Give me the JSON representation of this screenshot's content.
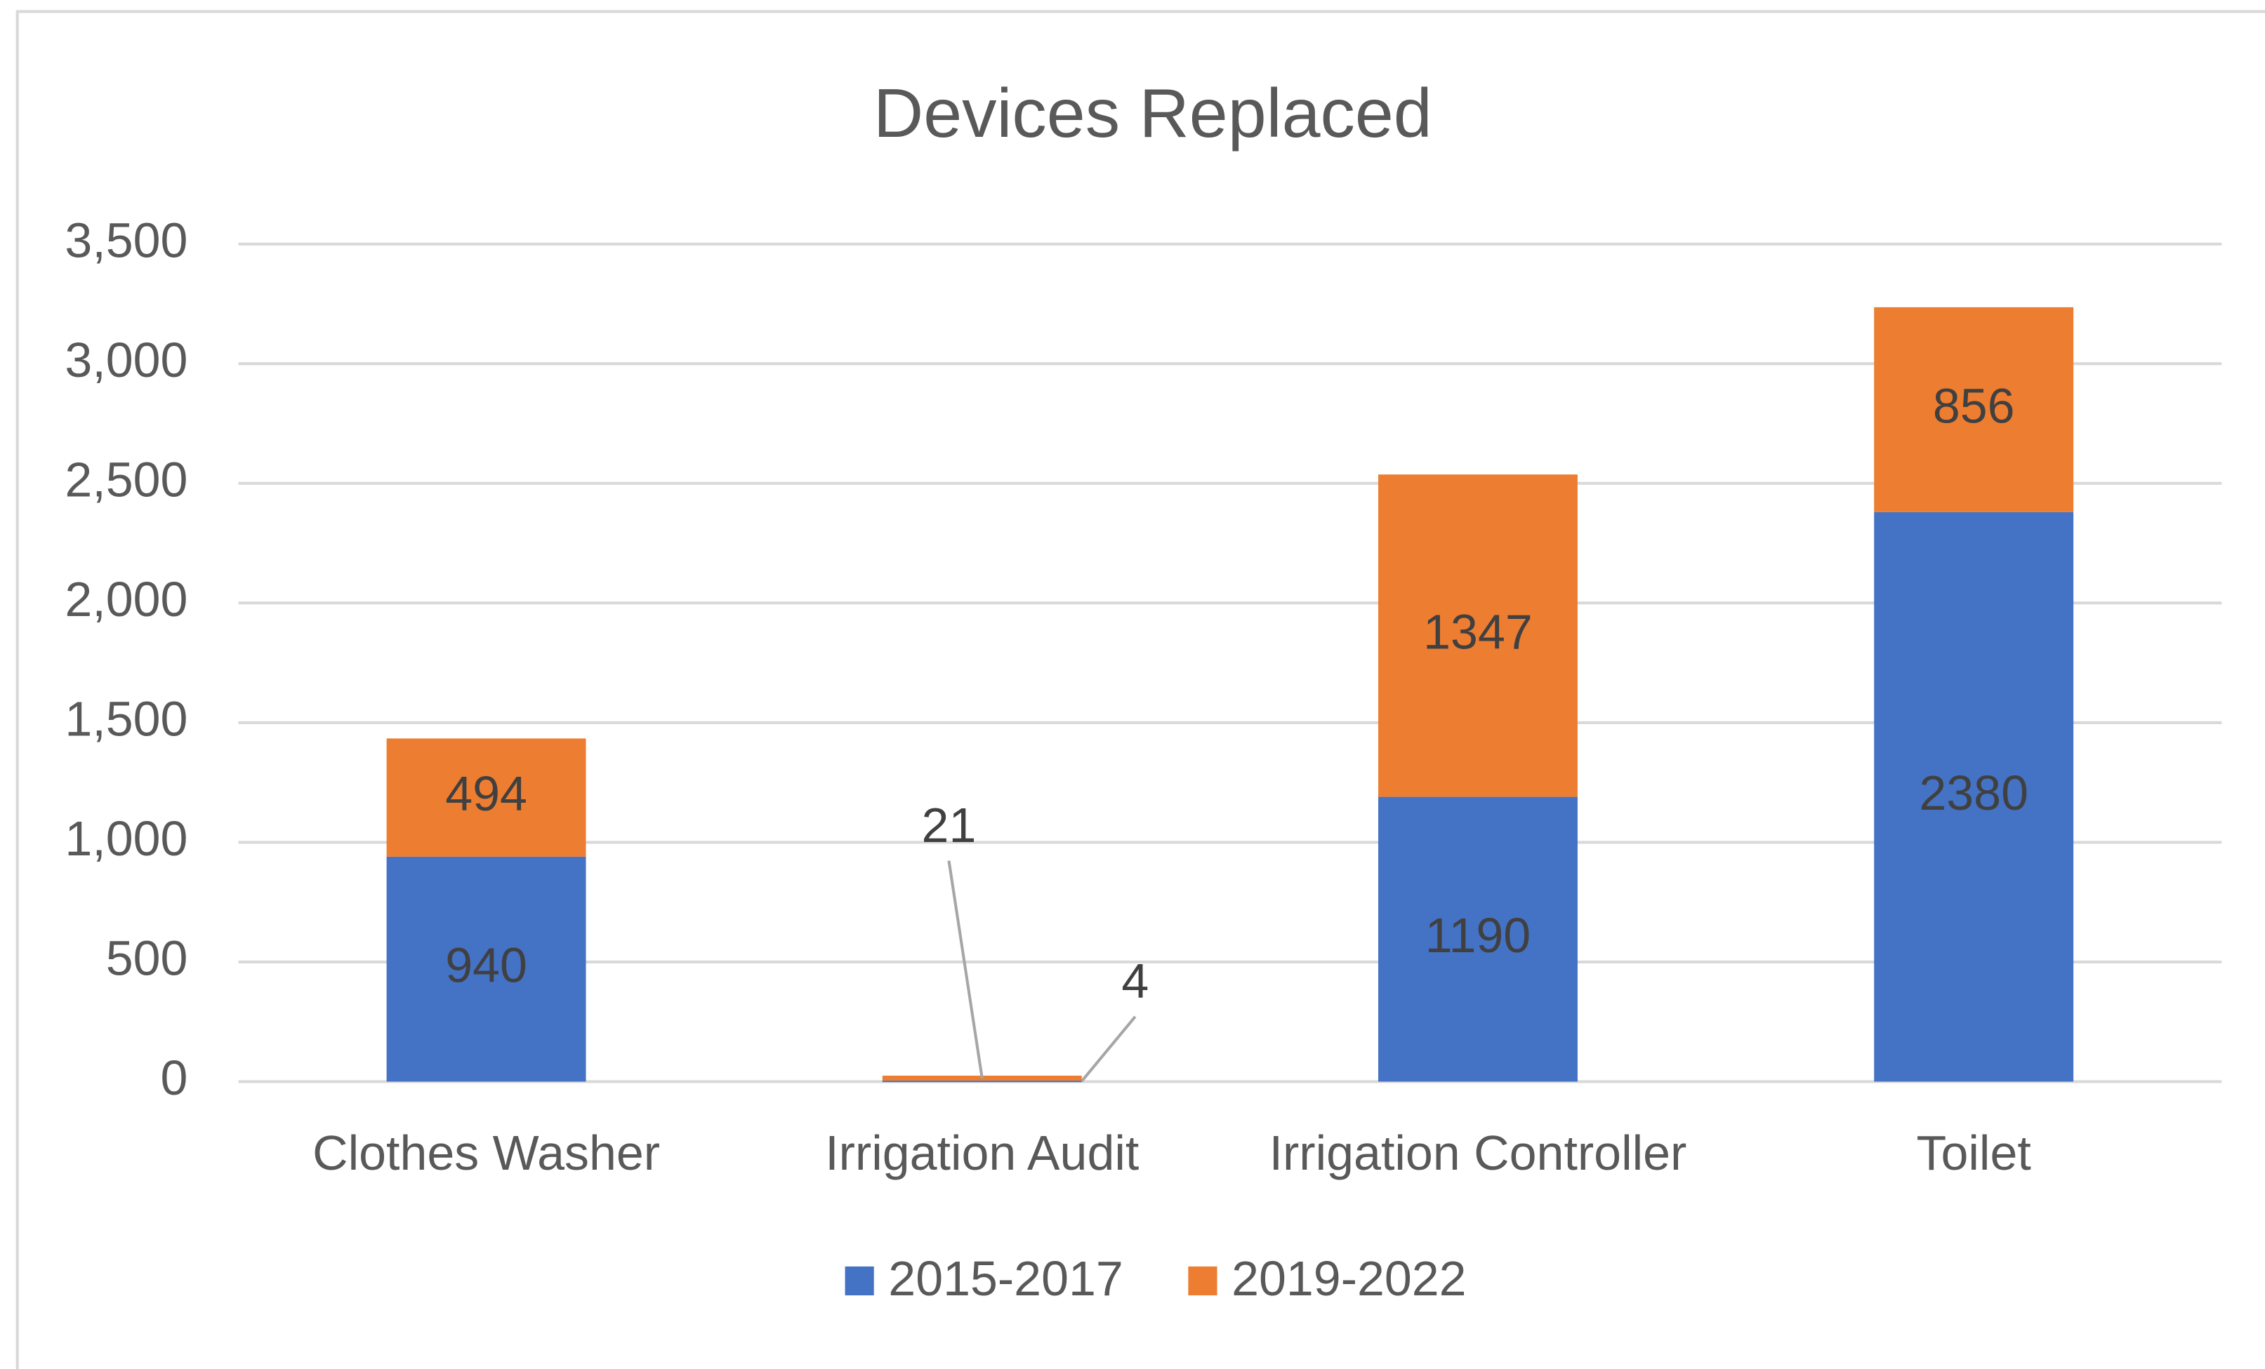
{
  "chart_data": {
    "type": "stacked_bar",
    "title": "Devices Replaced",
    "categories": [
      "Clothes Washer",
      "Irrigation Audit",
      "Irrigation Controller",
      "Toilet"
    ],
    "series": [
      {
        "name": "2015-2017",
        "color": "#4472c4",
        "values": [
          940,
          4,
          1190,
          2380
        ]
      },
      {
        "name": "2019-2022",
        "color": "#ed7d31",
        "values": [
          494,
          21,
          1347,
          856
        ]
      }
    ],
    "ylim": [
      0,
      3500
    ],
    "yticks": [
      0,
      {
        "value": 500,
        "label": "500"
      },
      {
        "value": 1000,
        "label": "1,000"
      },
      {
        "value": 1500,
        "label": "1,500"
      },
      {
        "value": 2000,
        "label": "2,000"
      },
      {
        "value": 2500,
        "label": "2,500"
      },
      {
        "value": 3000,
        "label": "3,000"
      },
      {
        "value": 3500,
        "label": "3,500"
      }
    ],
    "grid": true,
    "legend": "bottom"
  }
}
